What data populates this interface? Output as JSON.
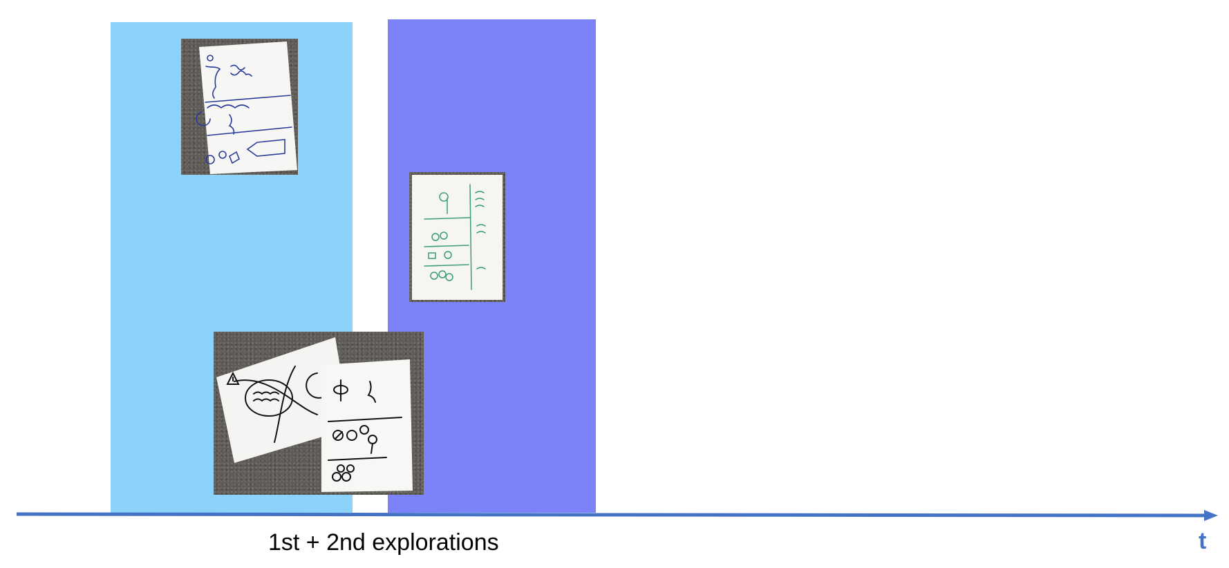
{
  "colors": {
    "band_early": "#8cd3fb",
    "band_late": "#7c83f9",
    "axis": "#4472c4",
    "t_label": "#4472c4"
  },
  "photos": [
    {
      "description_icon": "sketch-photo-icon"
    },
    {
      "description_icon": "sketch-photo-icon"
    },
    {
      "description_icon": "sketch-photo-icon"
    }
  ],
  "axis": {
    "caption": "1st + 2nd explorations",
    "label": "t"
  }
}
